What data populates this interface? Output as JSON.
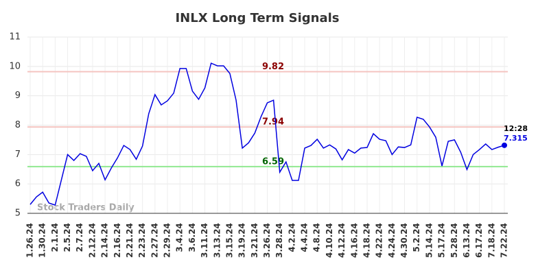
{
  "chart_data": {
    "type": "line",
    "title": "INLX Long Term Signals",
    "watermark": "Stock Traders Daily",
    "categories": [
      "1.26.24",
      null,
      "1.30.24",
      null,
      "2.1.24",
      null,
      "2.5.24",
      null,
      "2.7.24",
      null,
      "2.12.24",
      null,
      "2.14.24",
      null,
      "2.16.24",
      null,
      "2.21.24",
      null,
      "2.23.24",
      null,
      "2.27.24",
      null,
      "2.29.24",
      null,
      "3.4.24",
      null,
      "3.6.24",
      null,
      "3.11.24",
      null,
      "3.13.24",
      null,
      "3.15.24",
      null,
      "3.19.24",
      null,
      "3.21.24",
      null,
      "3.26.24",
      null,
      "3.28.24",
      null,
      "4.2.24",
      null,
      "4.4.24",
      null,
      "4.8.24",
      null,
      "4.10.24",
      null,
      "4.12.24",
      null,
      "4.16.24",
      null,
      "4.18.24",
      null,
      "4.22.24",
      null,
      "4.24.24",
      null,
      "4.30.24",
      null,
      "5.2.24",
      null,
      "5.14.24",
      null,
      "5.17.24",
      null,
      "5.28.24",
      null,
      "6.13.24",
      null,
      "6.17.24",
      null,
      "7.18.24",
      null,
      "7.22.24"
    ],
    "series": [
      {
        "name": "INLX",
        "color": "#0000e0",
        "values": [
          5.3,
          5.56,
          5.72,
          5.35,
          5.28,
          6.14,
          7.0,
          6.8,
          7.03,
          6.94,
          6.45,
          6.7,
          6.14,
          6.54,
          6.89,
          7.31,
          7.17,
          6.84,
          7.29,
          8.39,
          9.04,
          8.69,
          8.83,
          9.09,
          9.93,
          9.93,
          9.16,
          8.88,
          9.27,
          10.11,
          10.02,
          10.02,
          9.76,
          8.85,
          7.22,
          7.4,
          7.73,
          8.29,
          8.76,
          8.85,
          6.4,
          6.75,
          6.12,
          6.12,
          7.22,
          7.31,
          7.52,
          7.22,
          7.33,
          7.19,
          6.82,
          7.17,
          7.05,
          7.22,
          7.24,
          7.71,
          7.52,
          7.47,
          7.0,
          7.26,
          7.24,
          7.33,
          8.27,
          8.2,
          7.94,
          7.59,
          6.61,
          7.45,
          7.5,
          7.08,
          6.49,
          7.0,
          7.17,
          7.36,
          7.17,
          7.25,
          7.315
        ]
      }
    ],
    "hlines": [
      {
        "value": 9.82,
        "color": "#f4c4c0",
        "label_color": "#8b0000"
      },
      {
        "value": 7.94,
        "color": "#f4c4c0",
        "label_color": "#8b0000"
      },
      {
        "value": 6.59,
        "color": "#90e890",
        "label_color": "#006400"
      }
    ],
    "last_label": "12:28",
    "ylim": [
      5,
      11
    ],
    "yticks": [
      5,
      6,
      7,
      8,
      9,
      10,
      11
    ],
    "grid": true
  }
}
